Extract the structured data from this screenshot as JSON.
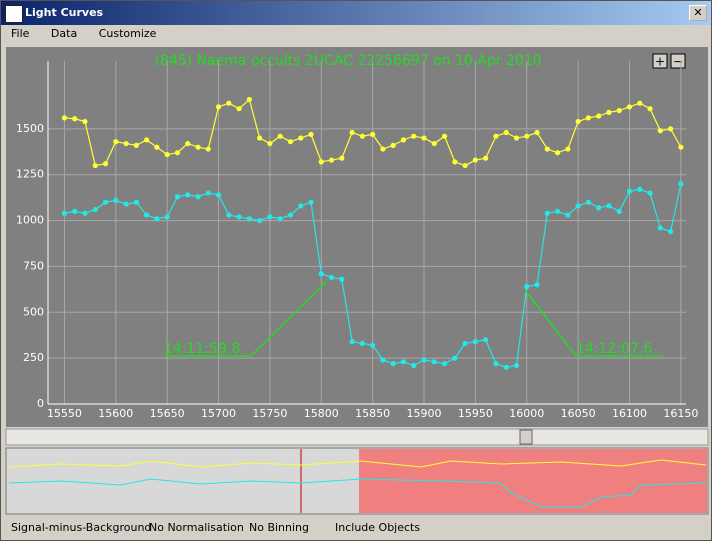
{
  "window": {
    "title": "Light Curves",
    "menu": [
      "File",
      "Data",
      "Customize"
    ],
    "status": [
      "Signal-minus-Background",
      "No Normalisation",
      "No Binning",
      "Include Objects"
    ],
    "zoom_buttons": [
      "+",
      "−"
    ]
  },
  "chart_data": {
    "type": "line",
    "title": "(845) Naema occults 2UCAC 22256697 on 10 Apr 2010",
    "x": [
      15550,
      15560,
      15570,
      15580,
      15590,
      15600,
      15610,
      15620,
      15630,
      15640,
      15650,
      15660,
      15670,
      15680,
      15690,
      15700,
      15710,
      15720,
      15730,
      15740,
      15750,
      15760,
      15770,
      15780,
      15790,
      15800,
      15810,
      15820,
      15830,
      15840,
      15850,
      15860,
      15870,
      15880,
      15890,
      15900,
      15910,
      15920,
      15930,
      15940,
      15950,
      15960,
      15970,
      15980,
      15990,
      16000,
      16010,
      16020,
      16030,
      16040,
      16050,
      16060,
      16070,
      16080,
      16090,
      16100,
      16110,
      16120,
      16130,
      16140,
      16150
    ],
    "series": [
      {
        "color": "#ffff33",
        "values": [
          1560,
          1555,
          1540,
          1300,
          1310,
          1430,
          1420,
          1410,
          1440,
          1400,
          1360,
          1370,
          1420,
          1400,
          1390,
          1620,
          1640,
          1610,
          1660,
          1450,
          1420,
          1460,
          1430,
          1450,
          1470,
          1320,
          1330,
          1340,
          1480,
          1460,
          1470,
          1390,
          1410,
          1440,
          1460,
          1450,
          1420,
          1460,
          1320,
          1300,
          1330,
          1340,
          1460,
          1480,
          1450,
          1460,
          1480,
          1390,
          1370,
          1390,
          1540,
          1560,
          1570,
          1590,
          1600,
          1620,
          1640,
          1610,
          1490,
          1500,
          1400
        ]
      },
      {
        "color": "#22e8e8",
        "values": [
          1040,
          1050,
          1040,
          1060,
          1100,
          1110,
          1090,
          1100,
          1030,
          1010,
          1020,
          1130,
          1140,
          1130,
          1150,
          1140,
          1030,
          1020,
          1010,
          1000,
          1020,
          1010,
          1030,
          1080,
          1100,
          710,
          690,
          680,
          340,
          330,
          320,
          240,
          220,
          230,
          210,
          240,
          230,
          220,
          250,
          330,
          340,
          350,
          220,
          200,
          210,
          640,
          650,
          1040,
          1050,
          1030,
          1080,
          1100,
          1070,
          1080,
          1050,
          1160,
          1170,
          1150,
          960,
          940,
          1200
        ]
      }
    ],
    "xlim": [
      15534,
      16155
    ],
    "ylim": [
      0,
      1870
    ],
    "xticks": [
      15550,
      15600,
      15650,
      15700,
      15750,
      15800,
      15850,
      15900,
      15950,
      16000,
      16050,
      16100,
      16150
    ],
    "yticks": [
      0,
      250,
      500,
      750,
      1000,
      1250,
      1500
    ],
    "grid": true,
    "annotations": [
      {
        "text": "14:11:59.8",
        "x": 15805,
        "y": 670
      },
      {
        "text": "14:12:07.6",
        "x": 15999,
        "y": 616
      }
    ]
  }
}
